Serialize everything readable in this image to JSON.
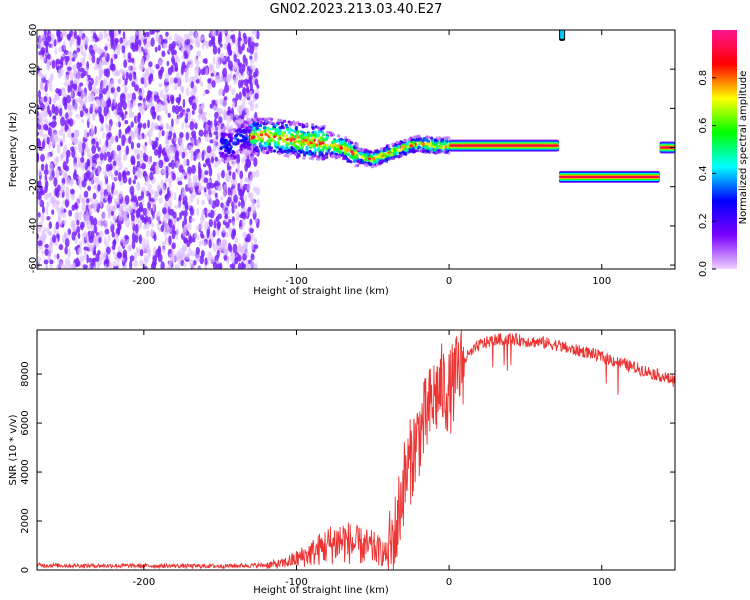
{
  "title": "GN02.2023.213.03.40.E27",
  "colors": {
    "snr_line": "#ee3333",
    "scatter_primary": "#7a22ff",
    "scatter_light": "#d8b8ff"
  },
  "chart_data": [
    {
      "type": "heatmap",
      "xlabel": "Height of straight line (km)",
      "ylabel": "Frequency (Hz)",
      "xlim": [
        -270,
        148
      ],
      "ylim": [
        -62,
        60
      ],
      "xticks": [
        -200,
        -100,
        0,
        100
      ],
      "xtick_labels": [
        "-200",
        "-100",
        "0",
        "100"
      ],
      "yticks": [
        -60,
        -40,
        -20,
        0,
        20,
        40,
        60
      ],
      "ytick_labels": [
        "-60",
        "-40",
        "-20",
        "0",
        "20",
        "40",
        "60"
      ],
      "colorbar": {
        "label": "Normalized spectral amplitude",
        "range": [
          0,
          1
        ],
        "ticks": [
          0.0,
          0.2,
          0.4,
          0.6,
          0.8
        ],
        "tick_labels": [
          "0.0",
          "0.2",
          "0.4",
          "0.6",
          "0.8"
        ],
        "colors": [
          "#f0d0ff",
          "#7a00ff",
          "#0000ff",
          "#00ffff",
          "#00ff00",
          "#ffff00",
          "#ff0000",
          "#ff1493"
        ]
      },
      "features": [
        {
          "name": "noise",
          "x_range": [
            -270,
            -125
          ],
          "freq_range": [
            -62,
            60
          ],
          "amplitude": 0.1
        },
        {
          "name": "signal-track",
          "points": [
            [
              -140,
              5
            ],
            [
              -120,
              6
            ],
            [
              -100,
              4
            ],
            [
              -90,
              3
            ],
            [
              -80,
              2
            ],
            [
              -70,
              0
            ],
            [
              -60,
              -4
            ],
            [
              -50,
              -6
            ],
            [
              -40,
              -3
            ],
            [
              -30,
              0
            ],
            [
              -20,
              2
            ],
            [
              -10,
              1
            ],
            [
              0,
              1
            ],
            [
              72,
              1
            ]
          ],
          "amplitude": 0.55
        },
        {
          "name": "steady-tone",
          "x_range": [
            0,
            72
          ],
          "freq": 1,
          "amplitude": 0.95
        },
        {
          "name": "shifted-tone",
          "x_range": [
            72,
            138
          ],
          "freq": -15,
          "amplitude": 0.95
        },
        {
          "name": "tone-blip",
          "x": 74,
          "freq": 58,
          "amplitude": 0.4
        },
        {
          "name": "end-tone",
          "x_range": [
            138,
            148
          ],
          "freq": 0,
          "amplitude": 0.95
        }
      ]
    },
    {
      "type": "line",
      "xlabel": "Height of straight line (km)",
      "ylabel": "SNR (10 * v/v)",
      "xlim": [
        -270,
        148
      ],
      "ylim": [
        0,
        9800
      ],
      "xticks": [
        -200,
        -100,
        0,
        100
      ],
      "xtick_labels": [
        "-200",
        "-100",
        "0",
        "100"
      ],
      "yticks": [
        0,
        2000,
        4000,
        6000,
        8000
      ],
      "ytick_labels": [
        "0",
        "2000",
        "4000",
        "6000",
        "8000"
      ],
      "series": [
        {
          "x": [
            -270,
            -250,
            -200,
            -150,
            -120,
            -110,
            -100,
            -90,
            -80,
            -70,
            -60,
            -50,
            -40,
            -35,
            -30,
            -25,
            -20,
            -15,
            -10,
            -5,
            0,
            10,
            20,
            30,
            40,
            50,
            60,
            70,
            80,
            90,
            100,
            110,
            120,
            130,
            140,
            148
          ],
          "values": [
            200,
            180,
            170,
            160,
            200,
            250,
            450,
            700,
            1000,
            1200,
            1000,
            900,
            600,
            1500,
            3500,
            4500,
            5500,
            6200,
            7000,
            7500,
            7200,
            8600,
            9200,
            9400,
            9450,
            9350,
            9300,
            9200,
            9000,
            8900,
            8700,
            8500,
            8300,
            8100,
            7900,
            7700
          ]
        }
      ]
    }
  ]
}
